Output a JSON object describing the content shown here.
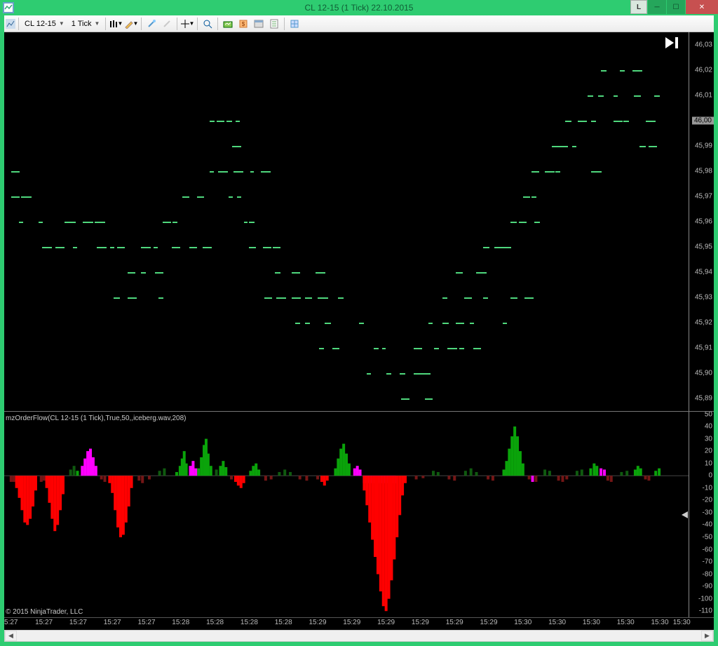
{
  "window": {
    "title": "CL 12-15 (1 Tick)  22.10.2015",
    "L_label": "L"
  },
  "toolbar": {
    "symbol": "CL 12-15",
    "interval": "1 Tick"
  },
  "main_chart": {
    "bg": "#000000",
    "tick_color": "#4fd87d",
    "y_min": 45.885,
    "y_max": 46.035,
    "y_labels": [
      "46,03",
      "46,02",
      "46,01",
      "46,00",
      "45,99",
      "45,98",
      "45,97",
      "45,96",
      "45,95",
      "45,94",
      "45,93",
      "45,92",
      "45,91",
      "45,90",
      "45,89"
    ],
    "y_values": [
      46.03,
      46.02,
      46.01,
      46.0,
      45.99,
      45.98,
      45.97,
      45.96,
      45.95,
      45.94,
      45.93,
      45.92,
      45.91,
      45.9,
      45.89
    ],
    "current_price": 46.0,
    "ticks": [
      [
        0.01,
        45.98
      ],
      [
        0.012,
        45.98
      ],
      [
        0.01,
        45.97
      ],
      [
        0.025,
        45.97
      ],
      [
        0.022,
        45.96
      ],
      [
        0.05,
        45.96
      ],
      [
        0.088,
        45.96
      ],
      [
        0.095,
        45.96
      ],
      [
        0.115,
        45.96
      ],
      [
        0.132,
        45.96
      ],
      [
        0.055,
        45.95
      ],
      [
        0.075,
        45.95
      ],
      [
        0.1,
        45.95
      ],
      [
        0.135,
        45.95
      ],
      [
        0.155,
        45.95
      ],
      [
        0.165,
        45.95
      ],
      [
        0.16,
        45.93
      ],
      [
        0.18,
        45.93
      ],
      [
        0.225,
        45.93
      ],
      [
        0.18,
        45.94
      ],
      [
        0.2,
        45.94
      ],
      [
        0.22,
        45.94
      ],
      [
        0.2,
        45.95
      ],
      [
        0.218,
        45.95
      ],
      [
        0.245,
        45.95
      ],
      [
        0.27,
        45.95
      ],
      [
        0.29,
        45.95
      ],
      [
        0.232,
        45.96
      ],
      [
        0.246,
        45.96
      ],
      [
        0.26,
        45.97
      ],
      [
        0.282,
        45.97
      ],
      [
        0.3,
        45.98
      ],
      [
        0.312,
        45.98
      ],
      [
        0.335,
        45.98
      ],
      [
        0.36,
        45.98
      ],
      [
        0.375,
        45.98
      ],
      [
        0.3,
        46.0
      ],
      [
        0.31,
        46.0
      ],
      [
        0.333,
        45.99
      ],
      [
        0.325,
        46.0
      ],
      [
        0.338,
        46.0
      ],
      [
        0.328,
        45.97
      ],
      [
        0.34,
        45.97
      ],
      [
        0.35,
        45.96
      ],
      [
        0.358,
        45.96
      ],
      [
        0.358,
        45.95
      ],
      [
        0.378,
        45.95
      ],
      [
        0.392,
        45.95
      ],
      [
        0.38,
        45.93
      ],
      [
        0.398,
        45.93
      ],
      [
        0.42,
        45.93
      ],
      [
        0.44,
        45.93
      ],
      [
        0.458,
        45.93
      ],
      [
        0.488,
        45.93
      ],
      [
        0.395,
        45.94
      ],
      [
        0.42,
        45.94
      ],
      [
        0.455,
        45.94
      ],
      [
        0.425,
        45.92
      ],
      [
        0.44,
        45.92
      ],
      [
        0.468,
        45.92
      ],
      [
        0.518,
        45.92
      ],
      [
        0.46,
        45.91
      ],
      [
        0.48,
        45.91
      ],
      [
        0.54,
        45.91
      ],
      [
        0.552,
        45.91
      ],
      [
        0.53,
        45.9
      ],
      [
        0.558,
        45.9
      ],
      [
        0.578,
        45.9
      ],
      [
        0.598,
        45.9
      ],
      [
        0.61,
        45.9
      ],
      [
        0.58,
        45.89
      ],
      [
        0.615,
        45.89
      ],
      [
        0.598,
        45.91
      ],
      [
        0.628,
        45.91
      ],
      [
        0.648,
        45.91
      ],
      [
        0.665,
        45.91
      ],
      [
        0.685,
        45.91
      ],
      [
        0.62,
        45.92
      ],
      [
        0.64,
        45.92
      ],
      [
        0.66,
        45.92
      ],
      [
        0.68,
        45.92
      ],
      [
        0.728,
        45.92
      ],
      [
        0.64,
        45.93
      ],
      [
        0.672,
        45.93
      ],
      [
        0.7,
        45.93
      ],
      [
        0.74,
        45.93
      ],
      [
        0.76,
        45.93
      ],
      [
        0.66,
        45.94
      ],
      [
        0.69,
        45.94
      ],
      [
        0.7,
        45.95
      ],
      [
        0.722,
        45.95
      ],
      [
        0.74,
        45.96
      ],
      [
        0.752,
        45.96
      ],
      [
        0.775,
        45.96
      ],
      [
        0.758,
        45.97
      ],
      [
        0.77,
        45.97
      ],
      [
        0.77,
        45.98
      ],
      [
        0.79,
        45.98
      ],
      [
        0.805,
        45.98
      ],
      [
        0.858,
        45.98
      ],
      [
        0.8,
        45.99
      ],
      [
        0.812,
        45.99
      ],
      [
        0.83,
        45.99
      ],
      [
        0.82,
        46.0
      ],
      [
        0.838,
        46.0
      ],
      [
        0.858,
        46.0
      ],
      [
        0.89,
        46.0
      ],
      [
        0.905,
        46.0
      ],
      [
        0.938,
        46.0
      ],
      [
        0.852,
        46.01
      ],
      [
        0.868,
        46.01
      ],
      [
        0.89,
        46.01
      ],
      [
        0.92,
        46.01
      ],
      [
        0.95,
        46.01
      ],
      [
        0.872,
        46.02
      ],
      [
        0.9,
        46.02
      ],
      [
        0.918,
        46.02
      ],
      [
        0.928,
        45.99
      ],
      [
        0.942,
        45.99
      ],
      [
        0.716,
        45.95
      ],
      [
        0.73,
        45.95
      ]
    ]
  },
  "sub_chart": {
    "label": "mzOrderFlow(CL 12-15 (1 Tick),True,50,,iceberg.wav,208)",
    "y_min": -115,
    "y_max": 52,
    "y_labels": [
      "50",
      "40",
      "30",
      "20",
      "10",
      "0",
      "-10",
      "-20",
      "-30",
      "-40",
      "-50",
      "-60",
      "-70",
      "-80",
      "-90",
      "-100",
      "-110"
    ],
    "y_values": [
      50,
      40,
      30,
      20,
      10,
      0,
      -10,
      -20,
      -30,
      -40,
      -50,
      -60,
      -70,
      -80,
      -90,
      -100,
      -110
    ],
    "colors": {
      "red": "#ff0000",
      "darkred": "#751616",
      "green": "#0aa30a",
      "darkgreen": "#0f5a0f",
      "magenta": "#ff00ff"
    },
    "bars": [
      [
        0.008,
        -5,
        "darkred"
      ],
      [
        0.012,
        -5,
        "darkred"
      ],
      [
        0.016,
        -10,
        "red"
      ],
      [
        0.02,
        -18,
        "red"
      ],
      [
        0.024,
        -28,
        "red"
      ],
      [
        0.028,
        -38,
        "red"
      ],
      [
        0.032,
        -40,
        "red"
      ],
      [
        0.036,
        -35,
        "red"
      ],
      [
        0.04,
        -25,
        "red"
      ],
      [
        0.044,
        -12,
        "red"
      ],
      [
        0.052,
        -5,
        "darkred"
      ],
      [
        0.056,
        -4,
        "darkred"
      ],
      [
        0.06,
        -10,
        "red"
      ],
      [
        0.064,
        -22,
        "red"
      ],
      [
        0.068,
        -35,
        "red"
      ],
      [
        0.072,
        -45,
        "red"
      ],
      [
        0.076,
        -40,
        "red"
      ],
      [
        0.08,
        -28,
        "red"
      ],
      [
        0.084,
        -15,
        "red"
      ],
      [
        0.095,
        5,
        "darkgreen"
      ],
      [
        0.1,
        8,
        "darkgreen"
      ],
      [
        0.105,
        4,
        "green"
      ],
      [
        0.112,
        8,
        "magenta"
      ],
      [
        0.116,
        14,
        "magenta"
      ],
      [
        0.12,
        20,
        "magenta"
      ],
      [
        0.124,
        22,
        "magenta"
      ],
      [
        0.128,
        15,
        "magenta"
      ],
      [
        0.132,
        8,
        "magenta"
      ],
      [
        0.14,
        -3,
        "darkred"
      ],
      [
        0.145,
        -5,
        "darkred"
      ],
      [
        0.152,
        -6,
        "red"
      ],
      [
        0.156,
        -14,
        "red"
      ],
      [
        0.16,
        -28,
        "red"
      ],
      [
        0.164,
        -42,
        "red"
      ],
      [
        0.168,
        -50,
        "red"
      ],
      [
        0.172,
        -48,
        "red"
      ],
      [
        0.176,
        -38,
        "red"
      ],
      [
        0.18,
        -25,
        "red"
      ],
      [
        0.184,
        -10,
        "red"
      ],
      [
        0.195,
        -4,
        "darkred"
      ],
      [
        0.2,
        -6,
        "darkred"
      ],
      [
        0.21,
        -3,
        "darkred"
      ],
      [
        0.225,
        4,
        "darkgreen"
      ],
      [
        0.232,
        6,
        "darkgreen"
      ],
      [
        0.25,
        3,
        "green"
      ],
      [
        0.255,
        8,
        "green"
      ],
      [
        0.258,
        14,
        "green"
      ],
      [
        0.261,
        20,
        "green"
      ],
      [
        0.264,
        10,
        "green"
      ],
      [
        0.27,
        8,
        "magenta"
      ],
      [
        0.274,
        12,
        "magenta"
      ],
      [
        0.278,
        6,
        "magenta"
      ],
      [
        0.282,
        6,
        "green"
      ],
      [
        0.286,
        15,
        "green"
      ],
      [
        0.29,
        25,
        "green"
      ],
      [
        0.293,
        30,
        "green"
      ],
      [
        0.296,
        18,
        "green"
      ],
      [
        0.3,
        8,
        "green"
      ],
      [
        0.308,
        5,
        "darkgreen"
      ],
      [
        0.314,
        8,
        "green"
      ],
      [
        0.318,
        12,
        "green"
      ],
      [
        0.322,
        7,
        "green"
      ],
      [
        0.33,
        -3,
        "darkred"
      ],
      [
        0.336,
        -5,
        "red"
      ],
      [
        0.34,
        -8,
        "red"
      ],
      [
        0.344,
        -10,
        "red"
      ],
      [
        0.348,
        -6,
        "red"
      ],
      [
        0.358,
        4,
        "green"
      ],
      [
        0.362,
        8,
        "green"
      ],
      [
        0.366,
        10,
        "green"
      ],
      [
        0.37,
        5,
        "green"
      ],
      [
        0.38,
        -4,
        "darkred"
      ],
      [
        0.388,
        -3,
        "darkred"
      ],
      [
        0.4,
        3,
        "darkgreen"
      ],
      [
        0.408,
        5,
        "darkgreen"
      ],
      [
        0.416,
        3,
        "darkgreen"
      ],
      [
        0.43,
        -3,
        "darkred"
      ],
      [
        0.44,
        -4,
        "darkred"
      ],
      [
        0.456,
        -3,
        "darkred"
      ],
      [
        0.462,
        -5,
        "red"
      ],
      [
        0.466,
        -8,
        "red"
      ],
      [
        0.47,
        -4,
        "red"
      ],
      [
        0.482,
        6,
        "green"
      ],
      [
        0.486,
        14,
        "green"
      ],
      [
        0.49,
        22,
        "green"
      ],
      [
        0.494,
        26,
        "green"
      ],
      [
        0.498,
        18,
        "green"
      ],
      [
        0.502,
        10,
        "green"
      ],
      [
        0.51,
        6,
        "magenta"
      ],
      [
        0.514,
        8,
        "magenta"
      ],
      [
        0.518,
        5,
        "magenta"
      ],
      [
        0.524,
        -6,
        "magenta"
      ],
      [
        0.528,
        -6,
        "magenta"
      ],
      [
        0.532,
        -6,
        "magenta"
      ],
      [
        0.536,
        -6,
        "magenta"
      ],
      [
        0.54,
        -6,
        "magenta"
      ],
      [
        0.544,
        -6,
        "magenta"
      ],
      [
        0.548,
        -6,
        "magenta"
      ],
      [
        0.552,
        -6,
        "magenta"
      ],
      [
        0.556,
        -6,
        "magenta"
      ],
      [
        0.56,
        -6,
        "magenta"
      ],
      [
        0.564,
        -6,
        "magenta"
      ],
      [
        0.568,
        -6,
        "magenta"
      ],
      [
        0.524,
        -12,
        "red"
      ],
      [
        0.528,
        -24,
        "red"
      ],
      [
        0.532,
        -38,
        "red"
      ],
      [
        0.536,
        -52,
        "red"
      ],
      [
        0.54,
        -66,
        "red"
      ],
      [
        0.544,
        -80,
        "red"
      ],
      [
        0.548,
        -94,
        "red"
      ],
      [
        0.552,
        -106,
        "red"
      ],
      [
        0.556,
        -110,
        "red"
      ],
      [
        0.56,
        -100,
        "red"
      ],
      [
        0.564,
        -85,
        "red"
      ],
      [
        0.568,
        -68,
        "red"
      ],
      [
        0.572,
        -50,
        "red"
      ],
      [
        0.576,
        -32,
        "red"
      ],
      [
        0.58,
        -16,
        "red"
      ],
      [
        0.584,
        -6,
        "red"
      ],
      [
        0.6,
        -3,
        "darkred"
      ],
      [
        0.61,
        -2,
        "darkred"
      ],
      [
        0.625,
        4,
        "darkgreen"
      ],
      [
        0.632,
        3,
        "darkgreen"
      ],
      [
        0.648,
        -3,
        "darkred"
      ],
      [
        0.656,
        -4,
        "darkred"
      ],
      [
        0.672,
        4,
        "darkgreen"
      ],
      [
        0.68,
        6,
        "darkgreen"
      ],
      [
        0.688,
        3,
        "darkgreen"
      ],
      [
        0.705,
        -3,
        "darkred"
      ],
      [
        0.712,
        -4,
        "darkred"
      ],
      [
        0.728,
        5,
        "green"
      ],
      [
        0.732,
        12,
        "green"
      ],
      [
        0.736,
        22,
        "green"
      ],
      [
        0.74,
        32,
        "green"
      ],
      [
        0.744,
        40,
        "green"
      ],
      [
        0.748,
        32,
        "green"
      ],
      [
        0.752,
        20,
        "green"
      ],
      [
        0.756,
        10,
        "green"
      ],
      [
        0.765,
        -3,
        "darkred"
      ],
      [
        0.77,
        -5,
        "magenta"
      ],
      [
        0.775,
        -5,
        "darkred"
      ],
      [
        0.788,
        5,
        "darkgreen"
      ],
      [
        0.795,
        4,
        "darkgreen"
      ],
      [
        0.808,
        -4,
        "darkred"
      ],
      [
        0.814,
        -5,
        "darkred"
      ],
      [
        0.82,
        -3,
        "darkred"
      ],
      [
        0.835,
        4,
        "darkgreen"
      ],
      [
        0.842,
        5,
        "darkgreen"
      ],
      [
        0.855,
        6,
        "green"
      ],
      [
        0.86,
        10,
        "green"
      ],
      [
        0.864,
        8,
        "green"
      ],
      [
        0.87,
        6,
        "magenta"
      ],
      [
        0.875,
        5,
        "magenta"
      ],
      [
        0.88,
        -4,
        "darkred"
      ],
      [
        0.885,
        -5,
        "darkred"
      ],
      [
        0.9,
        3,
        "darkgreen"
      ],
      [
        0.908,
        4,
        "darkgreen"
      ],
      [
        0.92,
        5,
        "green"
      ],
      [
        0.924,
        8,
        "green"
      ],
      [
        0.928,
        6,
        "green"
      ],
      [
        0.935,
        -3,
        "darkred"
      ],
      [
        0.94,
        -4,
        "darkred"
      ],
      [
        0.95,
        4,
        "green"
      ],
      [
        0.955,
        6,
        "green"
      ]
    ]
  },
  "xaxis": {
    "labels": [
      "5:27",
      "15:27",
      "15:27",
      "15:27",
      "15:27",
      "15:28",
      "15:28",
      "15:28",
      "15:28",
      "15:29",
      "15:29",
      "15:29",
      "15:29",
      "15:29",
      "15:29",
      "15:30",
      "15:30",
      "15:30",
      "15:30",
      "15:30",
      "15:30"
    ],
    "positions": [
      0.01,
      0.058,
      0.108,
      0.158,
      0.208,
      0.258,
      0.308,
      0.358,
      0.408,
      0.458,
      0.508,
      0.558,
      0.608,
      0.658,
      0.708,
      0.758,
      0.808,
      0.858,
      0.908,
      0.958,
      0.99
    ]
  },
  "copyright": "© 2015 NinjaTrader, LLC"
}
